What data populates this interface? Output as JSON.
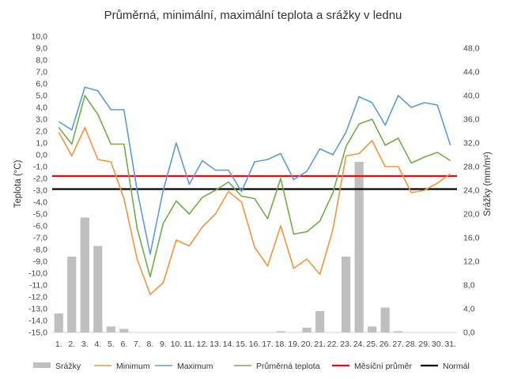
{
  "chart_data": {
    "type": "combo",
    "title": "Průměrná, minimální, maximální teplota a srážky v lednu",
    "ylabel": "Teplota (°C)",
    "y2label": "Srážky (mm/m²)",
    "ylim": [
      -15,
      10
    ],
    "y2lim": [
      0,
      50
    ],
    "yticks": [
      "10,0",
      "9,0",
      "8,0",
      "7,0",
      "6,0",
      "5,0",
      "4,0",
      "3,0",
      "2,0",
      "1,0",
      "0,0",
      "-1,0",
      "-2,0",
      "-3,0",
      "-4,0",
      "-5,0",
      "-6,0",
      "-7,0",
      "-8,0",
      "-9,0",
      "-10,0",
      "-11,0",
      "-12,0",
      "-13,0",
      "-14,0",
      "-15,0"
    ],
    "y2ticks": [
      "48,0",
      "44,0",
      "40,0",
      "36,0",
      "32,0",
      "28,0",
      "24,0",
      "20,0",
      "16,0",
      "12,0",
      "8,0",
      "4,0",
      "0,0"
    ],
    "categories": [
      "1.",
      "2.",
      "3.",
      "4.",
      "5.",
      "6.",
      "7.",
      "8.",
      "9.",
      "10.",
      "11.",
      "12.",
      "13.",
      "14.",
      "15.",
      "16.",
      "17.",
      "18.",
      "19.",
      "20.",
      "21.",
      "22.",
      "23.",
      "24.",
      "25.",
      "26.",
      "27.",
      "28.",
      "29.",
      "30.",
      "31."
    ],
    "series": [
      {
        "name": "Srážky",
        "kind": "bar",
        "axis": "right",
        "color": "#bfbfbf",
        "values": [
          3.2,
          12.8,
          19.4,
          14.6,
          1.0,
          0.6,
          0,
          0,
          0,
          0,
          0,
          0,
          0,
          0,
          0,
          0,
          0,
          0.2,
          0,
          0.8,
          3.6,
          0,
          12.8,
          28.8,
          1.0,
          4.2,
          0.2,
          0,
          0,
          0,
          0
        ]
      },
      {
        "name": "Minimum",
        "kind": "line",
        "axis": "left",
        "color": "#f0963c",
        "values": [
          1.9,
          -0.1,
          2.3,
          -0.4,
          -0.6,
          -3.7,
          -8.8,
          -11.8,
          -10.8,
          -7.2,
          -7.7,
          -6.1,
          -5.0,
          -3.1,
          -4.0,
          -7.8,
          -9.4,
          -6.0,
          -9.6,
          -8.8,
          -10.1,
          -6.3,
          -0.1,
          0.1,
          1.2,
          -1.0,
          -1.0,
          -3.2,
          -3.0,
          -2.4,
          -1.6
        ]
      },
      {
        "name": "Maximum",
        "kind": "line",
        "axis": "left",
        "color": "#5b9bd5",
        "values": [
          2.8,
          2.1,
          5.7,
          5.4,
          3.8,
          3.8,
          -3.0,
          -8.4,
          -3.0,
          1.0,
          -2.5,
          -0.5,
          -1.3,
          -1.3,
          -3.1,
          -0.6,
          -0.4,
          0.1,
          -2.1,
          -1.4,
          0.5,
          0.0,
          1.9,
          4.9,
          4.4,
          2.5,
          5.0,
          4.0,
          4.4,
          4.2,
          0.8
        ]
      },
      {
        "name": "Průměrná teplota",
        "kind": "line",
        "axis": "left",
        "color": "#70ad47",
        "values": [
          2.3,
          0.9,
          5.0,
          3.4,
          0.9,
          0.9,
          -6.2,
          -10.3,
          -5.8,
          -3.9,
          -5.0,
          -3.6,
          -3.0,
          -2.3,
          -3.5,
          -3.7,
          -5.4,
          -2.0,
          -6.7,
          -6.5,
          -5.6,
          -3.2,
          0.7,
          2.6,
          3.0,
          0.8,
          1.4,
          -0.7,
          -0.2,
          0.2,
          -0.5
        ]
      },
      {
        "name": "Měsíční průměr",
        "kind": "hline",
        "axis": "left",
        "color": "#ff0000",
        "value": -1.8
      },
      {
        "name": "Normál",
        "kind": "hline",
        "axis": "left",
        "color": "#000000",
        "value": -2.9
      }
    ],
    "grid": false,
    "legend": "bottom"
  }
}
